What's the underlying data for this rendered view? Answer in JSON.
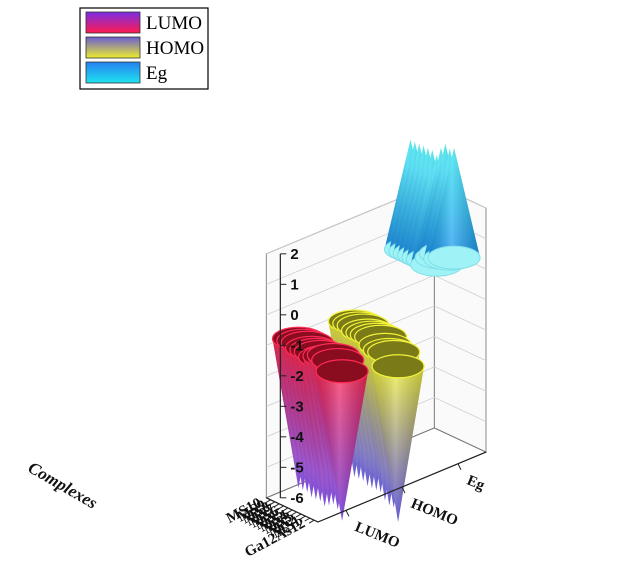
{
  "chart_data": {
    "type": "3d-cone",
    "xlabel": "Complexes",
    "ylabel": "",
    "zlabel": "",
    "categories": [
      "Ga12As12",
      "MS1",
      "MS2",
      "MS3",
      "MS4",
      "MS5",
      "MS6",
      "MS7",
      "MS8",
      "MS9",
      "MS10"
    ],
    "series_axis": [
      "LUMO",
      "HOMO",
      "Eg"
    ],
    "zlim": [
      -6,
      2
    ],
    "z_ticks": [
      "2",
      "1",
      "0",
      "-1",
      "-2",
      "-3",
      "-4",
      "-5",
      "-6"
    ],
    "grid": true,
    "legend_position": "top-left",
    "series": [
      {
        "name": "LUMO",
        "values": [
          -3.8,
          -3.5,
          -3.4,
          -3.5,
          -3.6,
          -3.5,
          -3.5,
          -3.5,
          -3.4,
          -3.4,
          -3.4
        ]
      },
      {
        "name": "HOMO",
        "values": [
          -5.7,
          -5.3,
          -5.3,
          -5.2,
          -5.0,
          -5.0,
          -5.0,
          -5.0,
          -4.9,
          -4.9,
          -4.9
        ]
      },
      {
        "name": "Eg",
        "values": [
          1.9,
          1.8,
          1.9,
          1.7,
          1.4,
          1.5,
          1.5,
          1.5,
          1.5,
          1.5,
          1.5
        ]
      }
    ]
  },
  "legend": {
    "items": [
      {
        "label": "LUMO",
        "gradient": [
          "#ff1a4f",
          "#7a2ee6"
        ]
      },
      {
        "label": "HOMO",
        "gradient": [
          "#ecec2e",
          "#6a5ed0"
        ]
      },
      {
        "label": "Eg",
        "gradient": [
          "#1fe3ef",
          "#2580f0"
        ]
      }
    ]
  },
  "colors": {
    "lumo_top": "#ff2a55",
    "lumo_bottom": "#5a1fd6",
    "lumo_rim": "#8a0c1f",
    "homo_top": "#f2f23a",
    "homo_bottom": "#3a2fd0",
    "homo_rim": "#7a7a18",
    "eg_top": "#2fe6f0",
    "eg_bottom": "#1a8cf0",
    "eg_rim": "#1aa8b8",
    "grid": "#cfcfcf",
    "axis": "#222222"
  }
}
